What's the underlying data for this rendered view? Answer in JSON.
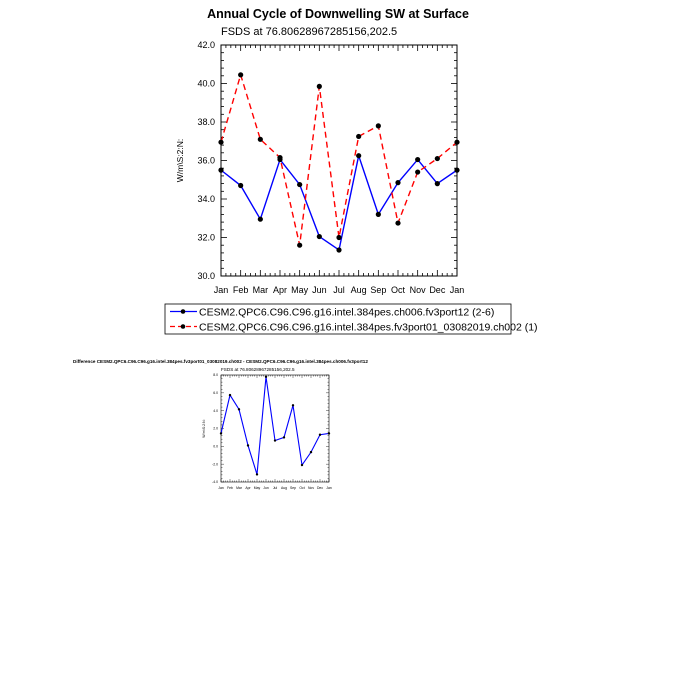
{
  "chart_data": [
    {
      "type": "line",
      "title": "Annual Cycle of Downwelling SW at Surface",
      "subtitle": "FSDS at 76.80628967285156,202.5",
      "ylabel": "W/m\\S:2:N:",
      "categories": [
        "Jan",
        "Feb",
        "Mar",
        "Apr",
        "May",
        "Jun",
        "Jul",
        "Aug",
        "Sep",
        "Oct",
        "Nov",
        "Dec",
        "Jan"
      ],
      "ylim": [
        30.0,
        42.0
      ],
      "yticks": [
        "30.0",
        "32.0",
        "34.0",
        "36.0",
        "38.0",
        "40.0",
        "42.0"
      ],
      "legend": "bottom",
      "series": [
        {
          "name": "CESM2.QPC6.C96.C96.g16.intel.384pes.ch006.fv3port12 (2-6)",
          "color": "#0000ff",
          "dash": "solid",
          "values": [
            35.5,
            34.7,
            32.95,
            36.05,
            34.75,
            32.05,
            31.35,
            36.25,
            33.2,
            34.85,
            36.05,
            34.8,
            35.5
          ]
        },
        {
          "name": "CESM2.QPC6.C96.C96.g16.intel.384pes.fv3port01_03082019.ch002 (1)",
          "color": "#ff0000",
          "dash": "dashed",
          "values": [
            36.95,
            40.45,
            37.1,
            36.15,
            31.6,
            39.85,
            32.0,
            37.25,
            37.8,
            32.75,
            35.4,
            36.1,
            36.95
          ]
        }
      ]
    },
    {
      "type": "line",
      "title": "Difference CESM2.QPC6.C96.C96.g16.intel.384pes.fv3port01_03082019.ch002 - CESM2.QPC6.C96.C96.g16.intel.384pes.ch006.fv3port12",
      "subtitle": "FSDS at 76.80628967285156,202.5",
      "ylabel": "W/m\\S:2:N:",
      "categories": [
        "Jan",
        "Feb",
        "Mar",
        "Apr",
        "May",
        "Jun",
        "Jul",
        "Aug",
        "Sep",
        "Oct",
        "Nov",
        "Dec",
        "Jan"
      ],
      "ylim": [
        -4.0,
        8.0
      ],
      "yticks": [
        "-4.0",
        "-2.0",
        "0.0",
        "2.0",
        "4.0",
        "6.0",
        "8.0"
      ],
      "series": [
        {
          "color": "#0000ff",
          "values": [
            1.45,
            5.75,
            4.15,
            0.1,
            -3.15,
            7.8,
            0.65,
            1.0,
            4.6,
            -2.1,
            -0.65,
            1.3,
            1.45
          ]
        }
      ]
    }
  ]
}
